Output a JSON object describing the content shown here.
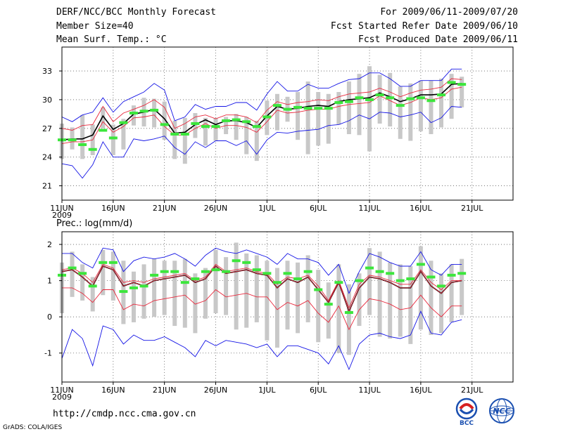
{
  "header": {
    "title": "DERF/NCC/BCC Monthly Forecast",
    "member_size": "Member Size=40",
    "variable": "Mean Surf. Temp.: °C",
    "period": "For 2009/06/11-2009/07/20",
    "refer_date": "Fcst Started Refer Date 2009/06/10",
    "produced_date": "Fcst Produced Date 2009/06/11"
  },
  "footer": {
    "url": "http://cmdp.ncc.cma.gov.cn",
    "credit": "GrADS: COLA/IGES",
    "logo_bcc": "BCC",
    "logo_ncc": "NCC"
  },
  "colors": {
    "mean": "#000000",
    "spread": "#e8283c",
    "extreme": "#1414e6",
    "bar": "#c8c8c8",
    "obs": "#3ce63c",
    "grid": "#606060"
  },
  "chart_data": [
    {
      "type": "line",
      "title": "Mean Surf. Temp.: °C",
      "ylim": [
        19.5,
        35.5
      ],
      "yticks": [
        21,
        24,
        27,
        30,
        33
      ],
      "xlim": [
        0,
        44
      ],
      "xticks": [
        {
          "x": 0,
          "label": "11JUN",
          "sub": "2009"
        },
        {
          "x": 5,
          "label": "16JUN"
        },
        {
          "x": 10,
          "label": "21JUN"
        },
        {
          "x": 15,
          "label": "26JUN"
        },
        {
          "x": 20,
          "label": "1JUL"
        },
        {
          "x": 25,
          "label": "6JUL"
        },
        {
          "x": 30,
          "label": "11JUL"
        },
        {
          "x": 35,
          "label": "16JUL"
        },
        {
          "x": 40,
          "label": "21JUL"
        }
      ],
      "x": [
        0,
        1,
        2,
        3,
        4,
        5,
        6,
        7,
        8,
        9,
        10,
        11,
        12,
        13,
        14,
        15,
        16,
        17,
        18,
        19,
        20,
        21,
        22,
        23,
        24,
        25,
        26,
        27,
        28,
        29,
        30,
        31,
        32,
        33,
        34,
        35,
        36,
        37,
        38,
        39
      ],
      "series": [
        {
          "name": "ensemble mean",
          "values": [
            25.8,
            25.9,
            25.9,
            26.3,
            28.3,
            26.9,
            27.5,
            28.5,
            28.7,
            29.0,
            28.0,
            26.5,
            26.6,
            27.4,
            27.9,
            27.4,
            27.8,
            27.8,
            27.6,
            27.1,
            28.3,
            29.3,
            29.0,
            29.1,
            29.3,
            29.4,
            29.3,
            29.8,
            30.0,
            30.1,
            30.2,
            30.7,
            30.3,
            29.8,
            30.1,
            30.5,
            30.5,
            30.6,
            31.6,
            31.7
          ]
        },
        {
          "name": "spread upper",
          "values": [
            27.0,
            26.8,
            27.3,
            27.4,
            29.3,
            27.7,
            28.6,
            29.0,
            29.4,
            30.0,
            29.2,
            27.0,
            27.5,
            28.2,
            28.4,
            28.0,
            28.4,
            28.4,
            28.2,
            27.6,
            28.9,
            29.8,
            29.5,
            29.7,
            29.8,
            30.0,
            29.9,
            30.3,
            30.6,
            30.7,
            30.8,
            31.2,
            30.8,
            30.3,
            30.7,
            31.0,
            31.1,
            31.3,
            32.2,
            32.1
          ]
        },
        {
          "name": "spread lower",
          "values": [
            25.4,
            25.6,
            25.6,
            25.8,
            27.7,
            26.6,
            27.2,
            28.1,
            28.2,
            28.4,
            27.2,
            26.3,
            26.3,
            27.0,
            27.5,
            27.0,
            27.3,
            27.3,
            27.1,
            26.6,
            27.7,
            28.9,
            28.6,
            28.7,
            28.9,
            29.0,
            29.0,
            29.3,
            29.5,
            29.6,
            29.7,
            30.4,
            29.9,
            29.4,
            29.7,
            30.2,
            30.0,
            30.2,
            31.1,
            31.3
          ]
        },
        {
          "name": "maximum",
          "values": [
            28.2,
            27.7,
            28.4,
            28.7,
            30.2,
            28.7,
            29.8,
            30.3,
            30.8,
            31.7,
            31.0,
            27.8,
            28.2,
            29.5,
            29.0,
            29.3,
            29.3,
            29.7,
            29.7,
            28.9,
            30.6,
            31.9,
            30.9,
            30.9,
            31.6,
            31.2,
            31.2,
            31.7,
            32.1,
            32.2,
            32.8,
            32.8,
            32.2,
            31.4,
            31.4,
            32.0,
            32.0,
            32.0,
            33.2,
            33.2
          ]
        },
        {
          "name": "minimum",
          "values": [
            23.3,
            23.1,
            21.8,
            23.2,
            25.6,
            24.0,
            24.0,
            25.9,
            25.7,
            25.9,
            26.2,
            25.0,
            24.3,
            25.6,
            25.0,
            25.7,
            25.7,
            25.2,
            25.7,
            24.3,
            25.8,
            26.6,
            26.5,
            26.7,
            26.8,
            26.9,
            27.3,
            27.4,
            27.8,
            28.4,
            28.0,
            28.7,
            28.6,
            28.2,
            28.4,
            28.7,
            27.6,
            28.1,
            29.3,
            29.2
          ]
        }
      ],
      "bars": {
        "name": "member range",
        "low": [
          23.8,
          24.8,
          23.8,
          24.2,
          27.0,
          24.2,
          24.8,
          27.3,
          27.2,
          27.1,
          25.8,
          23.8,
          23.3,
          26.0,
          25.2,
          25.7,
          26.4,
          25.8,
          24.3,
          23.6,
          26.3,
          26.8,
          27.7,
          25.8,
          24.3,
          25.2,
          25.4,
          27.4,
          26.4,
          26.3,
          24.6,
          27.5,
          27.2,
          25.9,
          25.7,
          26.7,
          26.4,
          27.1,
          28.0,
          29.2
        ],
        "high": [
          27.5,
          27.1,
          28.4,
          27.4,
          29.2,
          27.4,
          28.0,
          29.4,
          30.2,
          30.1,
          29.8,
          27.8,
          28.1,
          28.6,
          28.1,
          28.1,
          28.2,
          28.5,
          28.2,
          27.8,
          29.9,
          30.6,
          30.3,
          30.8,
          31.9,
          30.8,
          30.6,
          30.8,
          31.9,
          32.7,
          33.5,
          32.6,
          32.8,
          31.4,
          31.7,
          32.0,
          32.0,
          32.2,
          32.7,
          32.4
        ]
      },
      "marks": {
        "name": "green markers",
        "values": [
          25.8,
          25.8,
          25.3,
          24.8,
          26.8,
          26.0,
          27.6,
          28.6,
          28.8,
          28.9,
          27.4,
          26.4,
          26.4,
          27.5,
          27.2,
          27.2,
          27.8,
          27.9,
          27.7,
          27.2,
          28.2,
          29.4,
          29.0,
          29.2,
          29.1,
          29.1,
          29.1,
          29.7,
          29.8,
          30.2,
          30.0,
          30.5,
          30.2,
          29.4,
          30.1,
          30.2,
          29.9,
          30.5,
          31.8,
          31.6
        ]
      }
    },
    {
      "type": "line",
      "title": "Prec.: log(mm/d)",
      "ylim": [
        -1.8,
        2.35
      ],
      "yticks": [
        -1,
        0,
        1,
        2
      ],
      "xlim": [
        0,
        44
      ],
      "xticks": [
        {
          "x": 0,
          "label": "11JUN",
          "sub": "2009"
        },
        {
          "x": 5,
          "label": "16JUN"
        },
        {
          "x": 10,
          "label": "21JUN"
        },
        {
          "x": 15,
          "label": "26JUN"
        },
        {
          "x": 20,
          "label": "1JUL"
        },
        {
          "x": 25,
          "label": "6JUL"
        },
        {
          "x": 30,
          "label": "11JUL"
        },
        {
          "x": 35,
          "label": "16JUL"
        },
        {
          "x": 40,
          "label": "21JUL"
        }
      ],
      "x": [
        0,
        1,
        2,
        3,
        4,
        5,
        6,
        7,
        8,
        9,
        10,
        11,
        12,
        13,
        14,
        15,
        16,
        17,
        18,
        19,
        20,
        21,
        22,
        23,
        24,
        25,
        26,
        27,
        28,
        29,
        30,
        31,
        32,
        33,
        34,
        35,
        36,
        37,
        38,
        39
      ],
      "series": [
        {
          "name": "ensemble mean",
          "values": [
            1.25,
            1.3,
            1.1,
            0.85,
            1.4,
            1.3,
            0.85,
            0.95,
            0.85,
            1.0,
            1.05,
            1.1,
            1.15,
            0.95,
            1.05,
            1.4,
            1.2,
            1.25,
            1.3,
            1.2,
            1.15,
            0.8,
            1.05,
            0.95,
            1.1,
            0.75,
            0.4,
            0.95,
            0.15,
            0.8,
            1.1,
            1.05,
            0.95,
            0.8,
            0.8,
            1.25,
            0.85,
            0.65,
            0.95,
            1.0
          ]
        },
        {
          "name": "spread upper",
          "values": [
            1.3,
            1.35,
            1.2,
            0.95,
            1.45,
            1.35,
            0.95,
            1.0,
            0.95,
            1.05,
            1.1,
            1.15,
            1.2,
            1.0,
            1.1,
            1.45,
            1.25,
            1.3,
            1.35,
            1.25,
            1.2,
            0.9,
            1.1,
            1.05,
            1.15,
            0.85,
            0.45,
            1.0,
            0.25,
            0.9,
            1.15,
            1.1,
            1.0,
            0.9,
            0.9,
            1.3,
            0.95,
            0.75,
            1.0,
            1.0
          ]
        },
        {
          "name": "spread lower",
          "values": [
            0.8,
            0.8,
            0.65,
            0.4,
            0.75,
            0.75,
            0.2,
            0.35,
            0.3,
            0.45,
            0.5,
            0.55,
            0.6,
            0.35,
            0.45,
            0.75,
            0.55,
            0.6,
            0.65,
            0.55,
            0.55,
            0.2,
            0.4,
            0.3,
            0.45,
            0.1,
            -0.15,
            0.3,
            -0.35,
            0.2,
            0.5,
            0.45,
            0.35,
            0.2,
            0.25,
            0.6,
            0.25,
            0.0,
            0.3,
            0.3
          ]
        },
        {
          "name": "maximum",
          "values": [
            1.75,
            1.75,
            1.5,
            1.35,
            1.9,
            1.85,
            1.25,
            1.55,
            1.65,
            1.6,
            1.65,
            1.75,
            1.6,
            1.4,
            1.7,
            1.9,
            1.8,
            1.75,
            1.85,
            1.75,
            1.65,
            1.45,
            1.75,
            1.6,
            1.6,
            1.5,
            1.15,
            1.45,
            0.65,
            1.25,
            1.75,
            1.65,
            1.5,
            1.4,
            1.4,
            1.8,
            1.3,
            1.15,
            1.45,
            1.45
          ]
        },
        {
          "name": "minimum",
          "values": [
            -1.15,
            -0.35,
            -0.6,
            -1.35,
            -0.25,
            -0.35,
            -0.75,
            -0.5,
            -0.65,
            -0.65,
            -0.55,
            -0.7,
            -0.85,
            -1.1,
            -0.65,
            -0.8,
            -0.65,
            -0.7,
            -0.75,
            -0.85,
            -0.75,
            -1.1,
            -0.8,
            -0.8,
            -0.9,
            -1.0,
            -1.3,
            -0.8,
            -1.45,
            -0.75,
            -0.5,
            -0.45,
            -0.55,
            -0.6,
            -0.5,
            0.15,
            -0.45,
            -0.5,
            -0.15,
            -0.08
          ]
        },
        {
          "name": "ensemble median",
          "values": [
            1.25,
            1.3,
            1.1,
            0.85,
            1.4,
            1.3,
            0.85,
            0.95,
            0.85,
            1.0,
            1.05,
            1.1,
            1.15,
            0.95,
            1.05,
            1.4,
            1.2,
            1.25,
            1.3,
            1.2,
            1.15,
            0.8,
            1.05,
            0.95,
            1.1,
            0.75,
            0.4,
            0.95,
            0.15,
            0.8,
            1.1,
            1.05,
            0.95,
            0.8,
            0.8,
            1.25,
            0.85,
            0.65,
            0.95,
            1.0
          ]
        }
      ],
      "bars": {
        "name": "member range",
        "low": [
          0.1,
          0.55,
          0.45,
          0.15,
          0.6,
          0.45,
          -0.2,
          -0.15,
          -0.05,
          0.0,
          0.05,
          -0.25,
          -0.3,
          -0.45,
          -0.05,
          0.1,
          0.05,
          -0.35,
          -0.3,
          -0.15,
          -0.65,
          -0.85,
          -0.35,
          -0.45,
          -0.15,
          -0.7,
          -0.6,
          -1.0,
          -1.05,
          -0.25,
          0.05,
          -0.55,
          -0.6,
          -0.55,
          -0.75,
          -0.35,
          -0.5,
          -0.45,
          -0.15,
          0.05
        ],
        "high": [
          1.5,
          1.8,
          1.45,
          1.1,
          1.85,
          1.8,
          1.55,
          1.25,
          1.45,
          1.6,
          1.55,
          1.55,
          1.6,
          1.2,
          1.35,
          1.85,
          1.65,
          2.05,
          1.75,
          1.7,
          1.55,
          1.35,
          1.55,
          1.5,
          1.7,
          1.3,
          0.95,
          1.45,
          0.9,
          1.2,
          1.9,
          1.8,
          1.5,
          1.45,
          1.4,
          1.95,
          1.55,
          1.2,
          1.45,
          1.6
        ]
      },
      "marks": {
        "name": "green markers",
        "values": [
          1.15,
          1.35,
          1.2,
          0.85,
          1.5,
          1.5,
          0.7,
          0.8,
          0.85,
          1.15,
          1.25,
          1.25,
          0.95,
          1.05,
          1.25,
          1.3,
          1.25,
          1.55,
          1.5,
          1.3,
          1.2,
          0.95,
          1.2,
          1.05,
          1.25,
          0.75,
          0.35,
          0.95,
          0.12,
          1.0,
          1.35,
          1.25,
          1.2,
          1.0,
          1.05,
          1.45,
          1.1,
          0.85,
          1.15,
          1.2
        ]
      }
    }
  ]
}
